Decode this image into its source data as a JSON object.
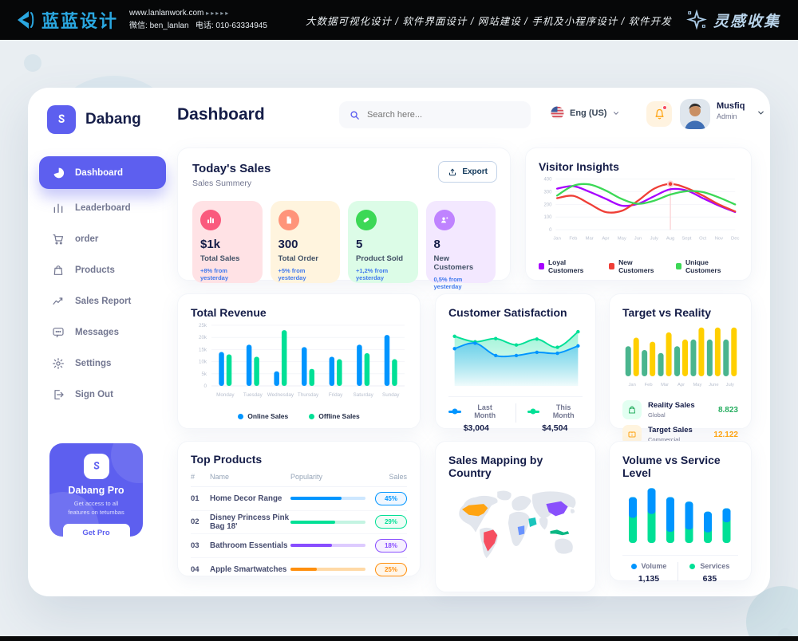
{
  "topbar": {
    "brand": "蓝蓝设计",
    "url": "www.lanlanwork.com",
    "arrows": "▸▸▸▸▸",
    "wechat": "微信: ben_lanlan",
    "phone": "电话: 010-63334945",
    "services": "大数据可视化设计 / 软件界面设计 / 网站建设 / 手机及小程序设计 / 软件开发",
    "collect": "灵感收集"
  },
  "sidebar": {
    "brand": "Dabang",
    "items": [
      {
        "label": "Dashboard"
      },
      {
        "label": "Leaderboard"
      },
      {
        "label": "order"
      },
      {
        "label": "Products"
      },
      {
        "label": "Sales Report"
      },
      {
        "label": "Messages"
      },
      {
        "label": "Settings"
      },
      {
        "label": "Sign Out"
      }
    ],
    "promo": {
      "title": "Dabang Pro",
      "line1": "Get access to all",
      "line2": "features on tetumbas",
      "button": "Get Pro"
    }
  },
  "header": {
    "title": "Dashboard",
    "search_placeholder": "Search here...",
    "language": "Eng (US)",
    "user_name": "Musfiq",
    "user_role": "Admin"
  },
  "today_sales": {
    "title": "Today's Sales",
    "subtitle": "Sales Summery",
    "export_label": "Export",
    "stats": [
      {
        "value": "$1k",
        "label": "Total Sales",
        "delta": "+8% from yesterday",
        "card_bg": "#ffe2e5",
        "icon_bg": "#fa5a7d",
        "delta_color": "#4079ed"
      },
      {
        "value": "300",
        "label": "Total Order",
        "delta": "+5% from yesterday",
        "card_bg": "#fff4de",
        "icon_bg": "#ff947a",
        "delta_color": "#4079ed"
      },
      {
        "value": "5",
        "label": "Product Sold",
        "delta": "+1,2% from yesterday",
        "card_bg": "#dcfce7",
        "icon_bg": "#3cd856",
        "delta_color": "#4079ed"
      },
      {
        "value": "8",
        "label": "New Customers",
        "delta": "0,5% from yesterday",
        "card_bg": "#f3e8ff",
        "icon_bg": "#bf83ff",
        "delta_color": "#4079ed"
      }
    ]
  },
  "chart_data": [
    {
      "id": "visitor-insights",
      "type": "line",
      "title": "Visitor Insights",
      "x": [
        "Jan",
        "Feb",
        "Mar",
        "Apr",
        "May",
        "Jun",
        "July",
        "Aug",
        "Sept",
        "Oct",
        "Nov",
        "Dec"
      ],
      "ylim": [
        0,
        400
      ],
      "yticks": [
        0,
        100,
        200,
        300,
        400
      ],
      "grid": true,
      "legend_position": "bottom",
      "series": [
        {
          "name": "Loyal Customers",
          "color": "#a700ff",
          "values": [
            325,
            345,
            300,
            245,
            190,
            205,
            265,
            320,
            310,
            250,
            190,
            140
          ]
        },
        {
          "name": "New Customers",
          "color": "#ef3e36",
          "values": [
            250,
            268,
            205,
            140,
            150,
            230,
            325,
            362,
            330,
            270,
            200,
            145
          ]
        },
        {
          "name": "Unique Customers",
          "color": "#3cd856",
          "values": [
            270,
            348,
            358,
            310,
            243,
            205,
            230,
            278,
            305,
            298,
            255,
            200
          ]
        }
      ],
      "highlight": {
        "x_index": 7,
        "series": "New Customers",
        "value": 362
      }
    },
    {
      "id": "total-revenue",
      "type": "bar",
      "title": "Total Revenue",
      "categories": [
        "Monday",
        "Tuesday",
        "Wednesday",
        "Thursday",
        "Friday",
        "Saturday",
        "Sunday"
      ],
      "ylim": [
        0,
        25
      ],
      "ytick_values": [
        0,
        5,
        10,
        15,
        20,
        25
      ],
      "ytick_labels": [
        "0",
        "5k",
        "10k",
        "15k",
        "20k",
        "25k"
      ],
      "grid": true,
      "legend_position": "bottom",
      "series": [
        {
          "name": "Online Sales",
          "color": "#0095ff",
          "values": [
            14,
            17,
            6,
            16,
            12,
            17,
            21
          ]
        },
        {
          "name": "Offline Sales",
          "color": "#00e096",
          "values": [
            13,
            12,
            23,
            7,
            11,
            13.5,
            11
          ]
        }
      ]
    },
    {
      "id": "customer-satisfaction",
      "type": "area",
      "title": "Customer Satisfaction",
      "ylim": [
        0,
        100
      ],
      "grid": false,
      "legend_position": "bottom",
      "series": [
        {
          "name": "Last Month",
          "color": "#0095ff",
          "total": "$3,004",
          "values": [
            55,
            67,
            40,
            40,
            47,
            45,
            61
          ]
        },
        {
          "name": "This Month",
          "color": "#00e096",
          "total": "$4,504",
          "values": [
            82,
            70,
            77,
            63,
            76,
            58,
            92
          ]
        }
      ]
    },
    {
      "id": "target-vs-reality",
      "type": "bar",
      "title": "Target vs Reality",
      "categories": [
        "Jan",
        "Feb",
        "Mar",
        "Apr",
        "May",
        "June",
        "July"
      ],
      "ylim": [
        0,
        14
      ],
      "grid": false,
      "legend_position": "none",
      "series": [
        {
          "name": "Reality Sales",
          "color": "#4ab58e",
          "values": [
            8,
            7,
            6.2,
            8,
            9.8,
            9.8,
            9.8
          ]
        },
        {
          "name": "Target Sales",
          "color": "#ffcf00",
          "values": [
            10.3,
            9.2,
            11.7,
            9.8,
            13,
            13,
            13
          ]
        }
      ],
      "info": [
        {
          "label": "Reality Sales",
          "sublabel": "Global",
          "value": "8.823",
          "value_color": "#27ae60",
          "icon_bg": "#e2fff1"
        },
        {
          "label": "Target Sales",
          "sublabel": "Commercial",
          "value": "12.122",
          "value_color": "#ffa412",
          "icon_bg": "#fff4de"
        }
      ]
    },
    {
      "id": "volume-vs-service",
      "type": "stacked-bar",
      "title": "Volume vs Service Level",
      "ylim": [
        0,
        100
      ],
      "grid": false,
      "legend_position": "bottom",
      "series": [
        {
          "name": "Volume",
          "color": "#0095ff",
          "total_label": "1,135",
          "values": [
            37,
            46,
            62,
            50,
            37,
            25
          ]
        },
        {
          "name": "Services",
          "color": "#00e096",
          "total_label": "635",
          "values": [
            45,
            52,
            20,
            24,
            19,
            37
          ]
        }
      ]
    }
  ],
  "top_products": {
    "title": "Top Products",
    "columns": [
      "#",
      "Name",
      "Popularity",
      "Sales"
    ],
    "rows": [
      {
        "num": "01",
        "name": "Home Decor Range",
        "popularity": "68%",
        "sales": "45%",
        "color": "#0095ff",
        "track_color": "#cde7ff",
        "badge_bg": "#f0f7ff"
      },
      {
        "num": "02",
        "name": "Disney Princess Pink Bag 18'",
        "popularity": "60%",
        "sales": "29%",
        "color": "#00e096",
        "track_color": "#c4f4e2",
        "badge_bg": "#effcf6"
      },
      {
        "num": "03",
        "name": "Bathroom Essentials",
        "popularity": "55%",
        "sales": "18%",
        "color": "#884dff",
        "track_color": "#ddcbff",
        "badge_bg": "#f6f0ff"
      },
      {
        "num": "04",
        "name": "Apple Smartwatches",
        "popularity": "35%",
        "sales": "25%",
        "color": "#ff8f0d",
        "track_color": "#ffd9a6",
        "badge_bg": "#fff6ea"
      }
    ]
  },
  "sales_mapping": {
    "title": "Sales Mapping by Country",
    "countries": [
      {
        "name": "United States",
        "color": "#ffa412"
      },
      {
        "name": "Brazil",
        "color": "#f64e60"
      },
      {
        "name": "China",
        "color": "#8950fc"
      },
      {
        "name": "Saudi Arabia",
        "color": "#1bc5bd"
      },
      {
        "name": "DR Congo",
        "color": "#6993ff"
      },
      {
        "name": "Indonesia",
        "color": "#0bb783"
      }
    ]
  }
}
